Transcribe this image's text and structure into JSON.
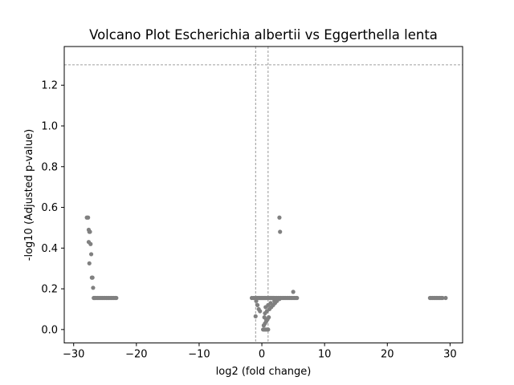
{
  "chart_data": {
    "type": "scatter",
    "title": "Volcano Plot Escherichia albertii vs Eggerthella lenta",
    "xlabel": "log2 (fold change)",
    "ylabel": "-log10 (Adjusted p-value)",
    "xlim": [
      -31.5,
      32.0
    ],
    "ylim": [
      -0.066,
      1.39
    ],
    "xticks": [
      -30,
      -20,
      -10,
      0,
      10,
      20,
      30
    ],
    "xtick_labels": [
      "−30",
      "−20",
      "−10",
      "0",
      "10",
      "20",
      "30"
    ],
    "yticks": [
      0.0,
      0.2,
      0.4,
      0.6,
      0.8,
      1.0,
      1.2
    ],
    "ytick_labels": [
      "0.0",
      "0.2",
      "0.4",
      "0.6",
      "0.8",
      "1.0",
      "1.2"
    ],
    "grid": false,
    "legend": "none",
    "point_color": "#808080",
    "threshold_color": "#808080",
    "thresholds": {
      "horizontal": [
        1.3
      ],
      "vertical": [
        -1.0,
        1.0
      ]
    },
    "series": [
      {
        "x": [
          -27.9,
          -27.7,
          -27.6,
          -27.5,
          -27.4,
          -27.3,
          -27.6,
          -27.2,
          -27.5,
          -27.1,
          -27.0,
          -26.9,
          -26.8,
          -26.7,
          -26.6,
          -26.4,
          -26.2,
          -26.0,
          -25.8,
          -25.6,
          -25.4,
          -25.2,
          -25.0,
          -24.8,
          -24.6,
          -24.4,
          -24.2,
          -24.0,
          -23.8,
          -23.6,
          -23.4,
          -23.2,
          -1.6,
          -1.3,
          -1.1,
          -1.0,
          -0.9,
          -0.8,
          -0.7,
          -0.6,
          -0.5,
          -0.4,
          -0.3,
          -0.2,
          -0.1,
          0.0,
          0.1,
          0.2,
          0.3,
          0.4,
          0.5,
          0.6,
          0.7,
          0.8,
          0.9,
          1.0,
          1.1,
          1.2,
          1.3,
          1.4,
          1.5,
          1.6,
          1.7,
          1.8,
          1.9,
          2.0,
          2.2,
          2.4,
          2.6,
          2.8,
          3.0,
          3.2,
          3.4,
          3.6,
          3.8,
          4.0,
          4.2,
          4.4,
          4.6,
          4.8,
          5.0,
          5.2,
          5.4,
          5.6,
          0.2,
          0.4,
          0.6,
          0.8,
          1.0,
          0.3,
          0.5,
          0.7,
          0.9,
          1.1,
          0.5,
          0.8,
          1.2,
          1.5,
          1.8,
          2.1,
          0.6,
          1.0,
          1.4,
          2.0,
          2.4,
          2.8,
          0.4,
          0.7,
          -0.5,
          -0.3,
          -0.7,
          -0.9,
          -1.0,
          2.8,
          2.9,
          5.0,
          26.8,
          27.0,
          27.2,
          27.4,
          27.6,
          27.8,
          28.0,
          28.2,
          28.4,
          28.6,
          28.8,
          29.3
        ],
        "y": [
          0.55,
          0.55,
          0.49,
          0.48,
          0.48,
          0.42,
          0.43,
          0.37,
          0.325,
          0.255,
          0.255,
          0.205,
          0.155,
          0.155,
          0.155,
          0.155,
          0.155,
          0.155,
          0.155,
          0.155,
          0.155,
          0.155,
          0.155,
          0.155,
          0.155,
          0.155,
          0.155,
          0.155,
          0.155,
          0.155,
          0.155,
          0.155,
          0.155,
          0.155,
          0.155,
          0.155,
          0.155,
          0.155,
          0.155,
          0.155,
          0.155,
          0.155,
          0.155,
          0.155,
          0.155,
          0.155,
          0.155,
          0.155,
          0.155,
          0.155,
          0.155,
          0.155,
          0.155,
          0.155,
          0.155,
          0.155,
          0.155,
          0.155,
          0.155,
          0.155,
          0.155,
          0.155,
          0.155,
          0.155,
          0.155,
          0.155,
          0.155,
          0.155,
          0.155,
          0.155,
          0.155,
          0.155,
          0.155,
          0.155,
          0.155,
          0.155,
          0.155,
          0.155,
          0.155,
          0.155,
          0.155,
          0.155,
          0.155,
          0.155,
          0.0,
          0.0,
          0.0,
          0.0,
          0.0,
          0.02,
          0.03,
          0.04,
          0.05,
          0.06,
          0.08,
          0.09,
          0.1,
          0.11,
          0.12,
          0.13,
          0.11,
          0.12,
          0.13,
          0.14,
          0.14,
          0.15,
          0.06,
          0.05,
          0.1,
          0.09,
          0.12,
          0.14,
          0.065,
          0.55,
          0.48,
          0.185,
          0.155,
          0.155,
          0.155,
          0.155,
          0.155,
          0.155,
          0.155,
          0.155,
          0.155,
          0.155,
          0.155,
          0.155
        ]
      }
    ]
  }
}
